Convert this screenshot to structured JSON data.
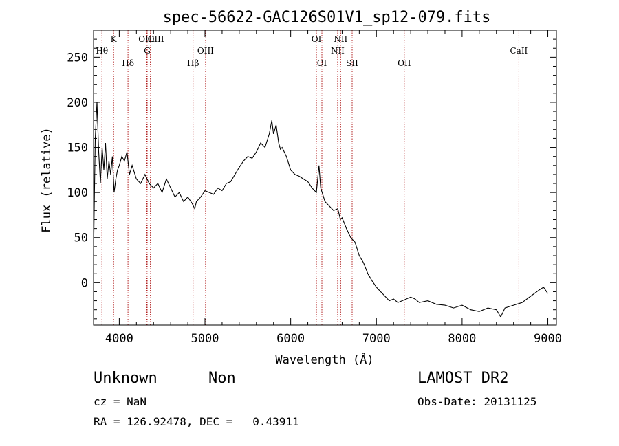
{
  "chart_data": {
    "type": "line",
    "title": "spec-56622-GAC126S01V1_sp12-079.fits",
    "xlabel": "Wavelength (Å)",
    "ylabel": "Flux (relative)",
    "xlim": [
      3700,
      9100
    ],
    "ylim": [
      -47,
      280
    ],
    "xticks": [
      4000,
      5000,
      6000,
      7000,
      8000,
      9000
    ],
    "yticks": [
      0,
      50,
      100,
      150,
      200,
      250
    ],
    "grid": false,
    "line_color": "#000000",
    "marker_color": "#b22222",
    "series": [
      {
        "x": [
          3700,
          3720,
          3740,
          3760,
          3780,
          3800,
          3820,
          3840,
          3860,
          3880,
          3900,
          3920,
          3940,
          3960,
          3980,
          4000,
          4030,
          4060,
          4090,
          4120,
          4150,
          4200,
          4250,
          4300,
          4350,
          4400,
          4450,
          4500,
          4550,
          4600,
          4650,
          4700,
          4750,
          4800,
          4850,
          4880,
          4900,
          4950,
          5000,
          5050,
          5100,
          5150,
          5200,
          5250,
          5300,
          5350,
          5400,
          5450,
          5500,
          5550,
          5600,
          5650,
          5700,
          5750,
          5780,
          5800,
          5830,
          5860,
          5880,
          5900,
          5950,
          6000,
          6050,
          6100,
          6150,
          6200,
          6250,
          6300,
          6330,
          6350,
          6400,
          6450,
          6500,
          6550,
          6580,
          6600,
          6650,
          6700,
          6750,
          6800,
          6850,
          6900,
          6950,
          7000,
          7050,
          7100,
          7150,
          7200,
          7250,
          7300,
          7400,
          7450,
          7500,
          7600,
          7700,
          7800,
          7900,
          8000,
          8100,
          8200,
          8300,
          8400,
          8450,
          8500,
          8600,
          8700,
          8800,
          8900,
          8950,
          9000
        ],
        "y": [
          30,
          160,
          200,
          145,
          110,
          150,
          125,
          155,
          115,
          135,
          120,
          140,
          100,
          115,
          125,
          130,
          140,
          135,
          145,
          120,
          130,
          115,
          110,
          120,
          110,
          105,
          110,
          100,
          115,
          105,
          95,
          100,
          90,
          95,
          88,
          82,
          90,
          95,
          102,
          100,
          98,
          105,
          102,
          110,
          112,
          120,
          128,
          135,
          140,
          138,
          145,
          155,
          150,
          165,
          180,
          165,
          175,
          155,
          148,
          150,
          140,
          125,
          120,
          118,
          115,
          112,
          105,
          100,
          130,
          105,
          90,
          85,
          80,
          82,
          70,
          72,
          60,
          50,
          45,
          30,
          22,
          10,
          2,
          -5,
          -10,
          -15,
          -20,
          -18,
          -22,
          -20,
          -16,
          -18,
          -22,
          -20,
          -24,
          -25,
          -28,
          -25,
          -30,
          -32,
          -28,
          -30,
          -38,
          -28,
          -25,
          -22,
          -15,
          -8,
          -5,
          -12
        ]
      }
    ],
    "line_markers": [
      {
        "label": "Hθ",
        "x": 3798,
        "row": 3
      },
      {
        "label": "K",
        "x": 3934,
        "row": 1
      },
      {
        "label": "Hδ",
        "x": 4102,
        "row": 4
      },
      {
        "label": "OIII",
        "x": 4320,
        "row": 1
      },
      {
        "label": "G",
        "x": 4326,
        "row": 3
      },
      {
        "label": "OIII",
        "x": 4363,
        "row": 2
      },
      {
        "label": "Hβ",
        "x": 4861,
        "row": 4
      },
      {
        "label": "OIII",
        "x": 5007,
        "row": 3
      },
      {
        "label": "OI",
        "x": 6300,
        "row": 1
      },
      {
        "label": "OI",
        "x": 6364,
        "row": 4
      },
      {
        "label": "NII",
        "x": 6548,
        "row": 3
      },
      {
        "label": "NII",
        "x": 6583,
        "row": 1
      },
      {
        "label": "SII",
        "x": 6717,
        "row": 4
      },
      {
        "label": "OII",
        "x": 7325,
        "row": 4
      },
      {
        "label": "CaII",
        "x": 8662,
        "row": 3
      }
    ]
  },
  "footer": {
    "class_label": "Unknown",
    "subclass_label": "Non",
    "survey_label": "LAMOST DR2",
    "cz_text": "cz = NaN",
    "obs_date_text": "Obs-Date: 20131125",
    "coords_text": "RA = 126.92478, DEC =   0.43911"
  }
}
